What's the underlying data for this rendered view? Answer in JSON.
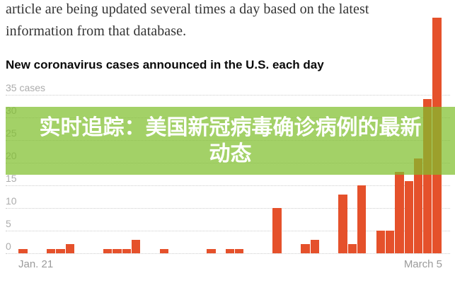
{
  "article": {
    "line1": "article are being updated several times a day based on the latest",
    "line2": "information from that database."
  },
  "chart": {
    "title": "New coronavirus cases announced in the U.S. each day",
    "y_axis": {
      "ticks": [
        {
          "value": 35,
          "label": "35 cases"
        },
        {
          "value": 30,
          "label": "30"
        },
        {
          "value": 25,
          "label": "25"
        },
        {
          "value": 20,
          "label": "20"
        },
        {
          "value": 15,
          "label": "15"
        },
        {
          "value": 10,
          "label": "10"
        },
        {
          "value": 5,
          "label": "5"
        },
        {
          "value": 0,
          "label": "0"
        }
      ]
    },
    "x_axis": {
      "start_label": "Jan. 21",
      "end_label": "March 5"
    },
    "colors": {
      "bar": "#e5512b",
      "grid": "#cccccc",
      "y_axis_text": "#acacac",
      "x_axis_text": "#9b9b9b"
    }
  },
  "overlay": {
    "line1": "实时追踪：美国新冠病毒确诊病例的最新",
    "line2": "动态",
    "background_rgba": "rgba(128,191,45,0.72)",
    "text_color": "#ffffff"
  },
  "chart_data": {
    "type": "bar",
    "title": "New coronavirus cases announced in the U.S. each day",
    "xlabel": "",
    "ylabel": "cases",
    "ylim": [
      0,
      35
    ],
    "grid": "dotted horizontal lines every 5 cases",
    "x_tick_labels_visible": [
      "Jan. 21",
      "March 5"
    ],
    "x": [
      "Jan 21",
      "Jan 22",
      "Jan 23",
      "Jan 24",
      "Jan 25",
      "Jan 26",
      "Jan 27",
      "Jan 28",
      "Jan 29",
      "Jan 30",
      "Jan 31",
      "Feb 1",
      "Feb 2",
      "Feb 3",
      "Feb 4",
      "Feb 5",
      "Feb 6",
      "Feb 7",
      "Feb 8",
      "Feb 9",
      "Feb 10",
      "Feb 11",
      "Feb 12",
      "Feb 13",
      "Feb 14",
      "Feb 15",
      "Feb 16",
      "Feb 17",
      "Feb 18",
      "Feb 19",
      "Feb 20",
      "Feb 21",
      "Feb 22",
      "Feb 23",
      "Feb 24",
      "Feb 25",
      "Feb 26",
      "Feb 27",
      "Feb 28",
      "Feb 29",
      "Mar 1",
      "Mar 2",
      "Mar 3",
      "Mar 4",
      "Mar 5"
    ],
    "values": [
      1,
      0,
      0,
      1,
      1,
      2,
      0,
      0,
      0,
      1,
      1,
      1,
      3,
      0,
      0,
      1,
      0,
      0,
      0,
      0,
      1,
      0,
      1,
      1,
      0,
      0,
      0,
      10,
      0,
      0,
      2,
      3,
      0,
      0,
      13,
      2,
      15,
      0,
      5,
      5,
      18,
      16,
      21,
      34,
      52
    ],
    "notes": "The final bar (March 5, ~52 cases) overflows the top of the plot area beyond the 35-case axis maximum; a translucent green banner with Chinese headline text is overlaid across the middle of the chart, tinting the bars behind it olive."
  }
}
